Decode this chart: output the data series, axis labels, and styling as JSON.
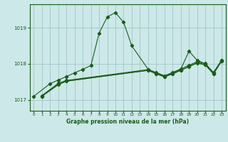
{
  "title": "Graphe pression niveau de la mer (hPa)",
  "bg_color": "#cce8e8",
  "plot_bg_color": "#cce8e8",
  "line_color": "#1a5c1a",
  "grid_color": "#9bbfbf",
  "xlim": [
    -0.5,
    23.5
  ],
  "ylim": [
    1016.7,
    1019.65
  ],
  "yticks": [
    1017,
    1018,
    1019
  ],
  "xticks": [
    0,
    1,
    2,
    3,
    4,
    5,
    6,
    7,
    8,
    9,
    10,
    11,
    12,
    13,
    14,
    15,
    16,
    17,
    18,
    19,
    20,
    21,
    22,
    23
  ],
  "main_x": [
    0,
    2,
    3,
    4,
    5,
    6,
    7,
    8,
    9,
    10,
    11,
    12,
    14,
    15,
    16,
    18,
    19,
    20,
    21,
    22,
    23
  ],
  "main_y": [
    1017.1,
    1017.45,
    1017.55,
    1017.65,
    1017.75,
    1017.85,
    1017.95,
    1018.85,
    1019.3,
    1019.42,
    1019.15,
    1018.5,
    1017.85,
    1017.75,
    1017.65,
    1017.85,
    1018.35,
    1018.1,
    1018.0,
    1017.75,
    1018.1
  ],
  "line2_x": [
    1,
    3,
    4,
    14,
    15,
    16,
    17,
    18,
    19,
    20,
    21,
    22,
    23
  ],
  "line2_y": [
    1017.1,
    1017.42,
    1017.52,
    1017.82,
    1017.73,
    1017.65,
    1017.73,
    1017.82,
    1017.93,
    1018.03,
    1017.98,
    1017.73,
    1018.08
  ],
  "line3_x": [
    1,
    3,
    4,
    14,
    15,
    16,
    17,
    18,
    19,
    20,
    21,
    22,
    23
  ],
  "line3_y": [
    1017.1,
    1017.44,
    1017.52,
    1017.82,
    1017.72,
    1017.64,
    1017.72,
    1017.82,
    1017.92,
    1018.02,
    1017.97,
    1017.72,
    1018.08
  ],
  "line4_x": [
    1,
    3,
    4,
    14,
    15,
    16,
    17,
    18,
    19,
    20,
    21,
    22,
    23
  ],
  "line4_y": [
    1017.12,
    1017.46,
    1017.54,
    1017.84,
    1017.76,
    1017.67,
    1017.76,
    1017.86,
    1017.96,
    1018.06,
    1018.01,
    1017.76,
    1018.1
  ]
}
